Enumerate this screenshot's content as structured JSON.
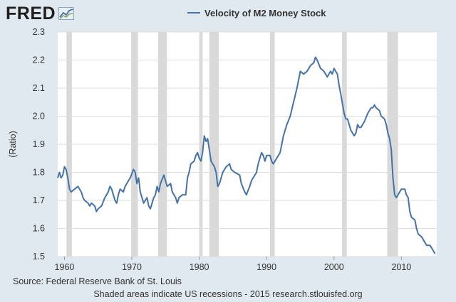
{
  "brand": {
    "logo_text": "FRED",
    "logo_icon": "chart-trend-icon"
  },
  "colors": {
    "background": "#e1e9f0",
    "plot_background": "#ffffff",
    "series": "#4572a7",
    "recession": "#d9d9d9",
    "grid": "#dddddd"
  },
  "footer": {
    "source": "Source: Federal Reserve Bank of St. Louis",
    "note": "Shaded areas indicate US recessions - 2015 research.stlouisfed.org"
  },
  "chart_data": {
    "type": "line",
    "title": "",
    "xlabel": "",
    "ylabel": "(Ratio)",
    "xlim": [
      1959,
      2015.25
    ],
    "ylim": [
      1.5,
      2.3
    ],
    "x_ticks": [
      1960,
      1970,
      1980,
      1990,
      2000,
      2010
    ],
    "x_tick_labels": [
      "1960",
      "1970",
      "1980",
      "1990",
      "2000",
      "2010"
    ],
    "y_ticks": [
      1.5,
      1.6,
      1.7,
      1.8,
      1.9,
      2.0,
      2.1,
      2.2,
      2.3
    ],
    "y_tick_labels": [
      "1.5",
      "1.6",
      "1.7",
      "1.8",
      "1.9",
      "2.0",
      "2.1",
      "2.2",
      "2.3"
    ],
    "grid": true,
    "legend_position": "top-center",
    "recessions": [
      [
        1960.3,
        1961.1
      ],
      [
        1969.9,
        1970.9
      ],
      [
        1973.9,
        1975.2
      ],
      [
        1980.0,
        1980.5
      ],
      [
        1981.5,
        1982.9
      ],
      [
        1990.5,
        1991.2
      ],
      [
        2001.2,
        2001.9
      ],
      [
        2007.9,
        2009.5
      ]
    ],
    "series": [
      {
        "name": "Velocity of M2 Money Stock",
        "color": "#4572a7",
        "points": [
          [
            1959.0,
            1.78
          ],
          [
            1959.25,
            1.8
          ],
          [
            1959.5,
            1.78
          ],
          [
            1959.75,
            1.79
          ],
          [
            1960.0,
            1.82
          ],
          [
            1960.25,
            1.81
          ],
          [
            1960.5,
            1.78
          ],
          [
            1960.75,
            1.74
          ],
          [
            1961.0,
            1.73
          ],
          [
            1961.5,
            1.74
          ],
          [
            1962.0,
            1.75
          ],
          [
            1962.25,
            1.74
          ],
          [
            1962.5,
            1.73
          ],
          [
            1962.75,
            1.71
          ],
          [
            1963.0,
            1.7
          ],
          [
            1963.5,
            1.69
          ],
          [
            1963.75,
            1.68
          ],
          [
            1964.0,
            1.69
          ],
          [
            1964.5,
            1.68
          ],
          [
            1964.75,
            1.66
          ],
          [
            1965.0,
            1.67
          ],
          [
            1965.5,
            1.68
          ],
          [
            1966.0,
            1.71
          ],
          [
            1966.5,
            1.73
          ],
          [
            1966.75,
            1.75
          ],
          [
            1967.0,
            1.74
          ],
          [
            1967.5,
            1.7
          ],
          [
            1967.75,
            1.69
          ],
          [
            1968.0,
            1.72
          ],
          [
            1968.25,
            1.74
          ],
          [
            1968.75,
            1.73
          ],
          [
            1969.0,
            1.75
          ],
          [
            1969.5,
            1.77
          ],
          [
            1969.75,
            1.78
          ],
          [
            1970.25,
            1.81
          ],
          [
            1970.5,
            1.8
          ],
          [
            1970.75,
            1.76
          ],
          [
            1971.0,
            1.78
          ],
          [
            1971.25,
            1.73
          ],
          [
            1971.75,
            1.69
          ],
          [
            1972.25,
            1.71
          ],
          [
            1972.5,
            1.68
          ],
          [
            1972.75,
            1.67
          ],
          [
            1973.25,
            1.71
          ],
          [
            1973.5,
            1.72
          ],
          [
            1973.75,
            1.75
          ],
          [
            1974.0,
            1.73
          ],
          [
            1974.25,
            1.76
          ],
          [
            1974.75,
            1.79
          ],
          [
            1975.0,
            1.77
          ],
          [
            1975.25,
            1.75
          ],
          [
            1975.75,
            1.76
          ],
          [
            1976.0,
            1.73
          ],
          [
            1976.5,
            1.71
          ],
          [
            1976.75,
            1.69
          ],
          [
            1977.0,
            1.71
          ],
          [
            1977.5,
            1.72
          ],
          [
            1978.0,
            1.72
          ],
          [
            1978.25,
            1.78
          ],
          [
            1978.5,
            1.8
          ],
          [
            1978.75,
            1.83
          ],
          [
            1979.25,
            1.84
          ],
          [
            1979.5,
            1.86
          ],
          [
            1979.75,
            1.87
          ],
          [
            1980.0,
            1.85
          ],
          [
            1980.25,
            1.84
          ],
          [
            1980.5,
            1.87
          ],
          [
            1980.75,
            1.93
          ],
          [
            1981.0,
            1.91
          ],
          [
            1981.25,
            1.92
          ],
          [
            1981.5,
            1.88
          ],
          [
            1981.75,
            1.84
          ],
          [
            1982.25,
            1.82
          ],
          [
            1982.5,
            1.8
          ],
          [
            1982.75,
            1.75
          ],
          [
            1983.0,
            1.76
          ],
          [
            1983.5,
            1.8
          ],
          [
            1984.0,
            1.82
          ],
          [
            1984.5,
            1.83
          ],
          [
            1984.75,
            1.81
          ],
          [
            1985.25,
            1.8
          ],
          [
            1986.0,
            1.79
          ],
          [
            1986.25,
            1.76
          ],
          [
            1986.75,
            1.73
          ],
          [
            1987.0,
            1.72
          ],
          [
            1987.5,
            1.75
          ],
          [
            1987.75,
            1.77
          ],
          [
            1988.0,
            1.78
          ],
          [
            1988.5,
            1.8
          ],
          [
            1988.75,
            1.83
          ],
          [
            1989.25,
            1.87
          ],
          [
            1989.5,
            1.86
          ],
          [
            1989.75,
            1.84
          ],
          [
            1990.0,
            1.86
          ],
          [
            1990.5,
            1.86
          ],
          [
            1990.75,
            1.84
          ],
          [
            1991.0,
            1.83
          ],
          [
            1991.5,
            1.85
          ],
          [
            1992.0,
            1.87
          ],
          [
            1992.5,
            1.93
          ],
          [
            1993.0,
            1.97
          ],
          [
            1993.5,
            2.0
          ],
          [
            1994.0,
            2.05
          ],
          [
            1994.5,
            2.1
          ],
          [
            1995.0,
            2.16
          ],
          [
            1995.5,
            2.15
          ],
          [
            1996.0,
            2.16
          ],
          [
            1996.5,
            2.18
          ],
          [
            1997.0,
            2.19
          ],
          [
            1997.25,
            2.21
          ],
          [
            1997.5,
            2.2
          ],
          [
            1998.0,
            2.17
          ],
          [
            1998.5,
            2.16
          ],
          [
            1999.0,
            2.14
          ],
          [
            1999.5,
            2.16
          ],
          [
            1999.75,
            2.15
          ],
          [
            2000.0,
            2.17
          ],
          [
            2000.25,
            2.16
          ],
          [
            2000.5,
            2.15
          ],
          [
            2000.75,
            2.11
          ],
          [
            2001.0,
            2.08
          ],
          [
            2001.5,
            2.01
          ],
          [
            2001.75,
            1.99
          ],
          [
            2002.0,
            1.99
          ],
          [
            2002.5,
            1.95
          ],
          [
            2003.0,
            1.93
          ],
          [
            2003.25,
            1.94
          ],
          [
            2003.5,
            1.97
          ],
          [
            2003.75,
            1.96
          ],
          [
            2004.0,
            1.96
          ],
          [
            2004.5,
            1.98
          ],
          [
            2005.0,
            2.01
          ],
          [
            2005.5,
            2.03
          ],
          [
            2005.75,
            2.03
          ],
          [
            2006.0,
            2.04
          ],
          [
            2006.25,
            2.03
          ],
          [
            2006.75,
            2.02
          ],
          [
            2007.0,
            2.0
          ],
          [
            2007.5,
            1.99
          ],
          [
            2007.75,
            1.97
          ],
          [
            2008.0,
            1.94
          ],
          [
            2008.25,
            1.92
          ],
          [
            2008.5,
            1.88
          ],
          [
            2008.75,
            1.78
          ],
          [
            2009.0,
            1.72
          ],
          [
            2009.25,
            1.71
          ],
          [
            2009.5,
            1.72
          ],
          [
            2010.0,
            1.74
          ],
          [
            2010.5,
            1.74
          ],
          [
            2010.75,
            1.72
          ],
          [
            2011.0,
            1.71
          ],
          [
            2011.25,
            1.66
          ],
          [
            2011.5,
            1.64
          ],
          [
            2012.0,
            1.63
          ],
          [
            2012.25,
            1.6
          ],
          [
            2012.5,
            1.58
          ],
          [
            2013.0,
            1.57
          ],
          [
            2013.25,
            1.56
          ],
          [
            2013.5,
            1.55
          ],
          [
            2013.75,
            1.54
          ],
          [
            2014.25,
            1.54
          ],
          [
            2014.5,
            1.53
          ],
          [
            2015.0,
            1.51
          ]
        ]
      }
    ]
  }
}
